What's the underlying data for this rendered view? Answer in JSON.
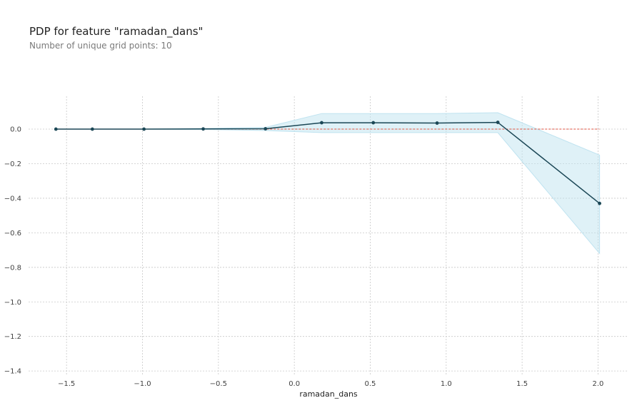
{
  "header": {
    "title": "PDP for feature \"ramadan_dans\"",
    "subtitle": "Number of unique grid points: 10"
  },
  "chart_data": {
    "type": "line",
    "xlabel": "ramadan_dans",
    "ylabel": "",
    "xlim": [
      -1.75,
      2.2
    ],
    "ylim": [
      -1.42,
      0.19
    ],
    "xticks": [
      -1.5,
      -1.0,
      -0.5,
      0.0,
      0.5,
      1.0,
      1.5,
      2.0
    ],
    "xtick_labels": [
      "−1.5",
      "−1.0",
      "−0.5",
      "0.0",
      "0.5",
      "1.0",
      "1.5",
      "2.0"
    ],
    "yticks": [
      0.0,
      -0.2,
      -0.4,
      -0.6,
      -0.8,
      -1.0,
      -1.2,
      -1.4
    ],
    "ytick_labels": [
      "0.0",
      "−0.2",
      "−0.4",
      "−0.6",
      "−0.8",
      "−1.0",
      "−1.2",
      "−1.4"
    ],
    "grid": true,
    "reference_line": 0.0,
    "series": [
      {
        "x": [
          -1.57,
          -1.33,
          -0.99,
          -0.6,
          -0.19,
          0.18,
          0.52,
          0.94,
          1.34,
          2.01
        ],
        "y": [
          0.0,
          0.0,
          0.0,
          0.001,
          0.002,
          0.037,
          0.037,
          0.035,
          0.039,
          -0.43
        ],
        "upper": [
          0.0,
          0.0,
          0.0,
          0.004,
          0.01,
          0.09,
          0.09,
          0.09,
          0.095,
          -0.15
        ],
        "lower": [
          0.0,
          0.0,
          0.0,
          -0.002,
          -0.008,
          -0.02,
          -0.02,
          -0.02,
          -0.02,
          -0.72
        ]
      }
    ],
    "colors": {
      "line": "#1b4756",
      "band": "#bfe3f0",
      "reference": "#e0523f",
      "grid": "#c8c8c8"
    }
  }
}
